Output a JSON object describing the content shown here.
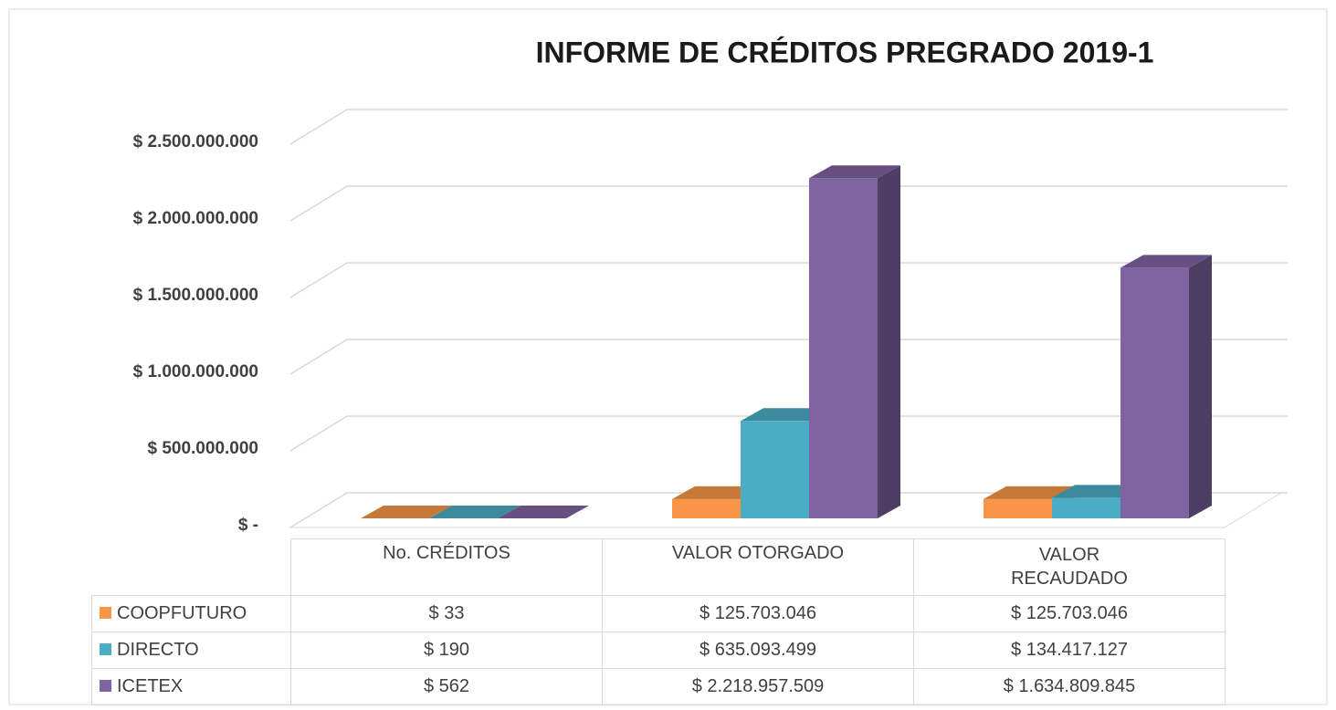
{
  "chart_data": {
    "type": "bar3d",
    "title": "INFORME DE CRÉDITOS PREGRADO 2019-1",
    "categories": [
      "No. CRÉDITOS",
      "VALOR OTORGADO",
      "VALOR RECAUDADO"
    ],
    "series": [
      {
        "name": "COOPFUTURO",
        "color": "#f79646",
        "values": [
          33,
          125703046,
          125703046
        ],
        "value_labels": [
          "$ 33",
          "$ 125.703.046",
          "$ 125.703.046"
        ]
      },
      {
        "name": "DIRECTO",
        "color": "#4bacc6",
        "values": [
          190,
          635093499,
          134417127
        ],
        "value_labels": [
          "$ 190",
          "$ 635.093.499",
          "$ 134.417.127"
        ]
      },
      {
        "name": "ICETEX",
        "color": "#8064a2",
        "values": [
          562,
          2218957509,
          1634809845
        ],
        "value_labels": [
          "$ 562",
          "$ 2.218.957.509",
          "$ 1.634.809.845"
        ]
      }
    ],
    "ylim": [
      0,
      2500000000
    ],
    "yticks": [
      {
        "value": 0,
        "label": "$ -"
      },
      {
        "value": 500000000,
        "label": "$ 500.000.000"
      },
      {
        "value": 1000000000,
        "label": "$ 1.000.000.000"
      },
      {
        "value": 1500000000,
        "label": "$ 1.500.000.000"
      },
      {
        "value": 2000000000,
        "label": "$ 2.000.000.000"
      },
      {
        "value": 2500000000,
        "label": "$ 2.500.000.000"
      }
    ],
    "grid": true,
    "legend": "table"
  }
}
